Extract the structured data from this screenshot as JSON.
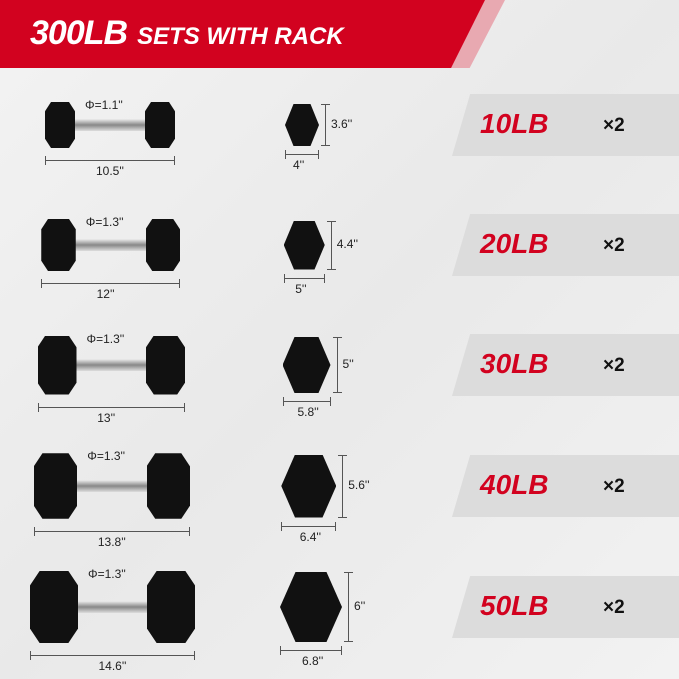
{
  "header": {
    "title_big": "300LB",
    "title_small": "SETS WITH RACK",
    "color": "#d2021f"
  },
  "rows": [
    {
      "weight": "10LB",
      "qty": "×2",
      "diameter": "Φ=1.1''",
      "length": "10.5''",
      "hex_height": "3.6''",
      "hex_width": "4''"
    },
    {
      "weight": "20LB",
      "qty": "×2",
      "diameter": "Φ=1.3''",
      "length": "12''",
      "hex_height": "4.4''",
      "hex_width": "5''"
    },
    {
      "weight": "30LB",
      "qty": "×2",
      "diameter": "Φ=1.3''",
      "length": "13''",
      "hex_height": "5''",
      "hex_width": "5.8''"
    },
    {
      "weight": "40LB",
      "qty": "×2",
      "diameter": "Φ=1.3''",
      "length": "13.8''",
      "hex_height": "5.6''",
      "hex_width": "6.4''"
    },
    {
      "weight": "50LB",
      "qty": "×2",
      "diameter": "Φ=1.3''",
      "length": "14.6''",
      "hex_height": "6''",
      "hex_width": "6.8''"
    }
  ]
}
